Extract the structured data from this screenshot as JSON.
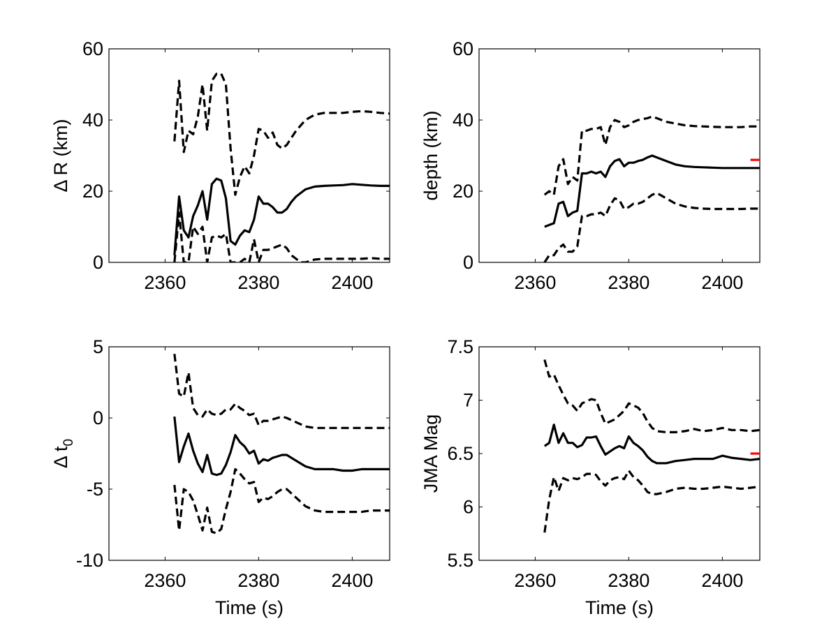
{
  "figure": {
    "background": "#ffffff"
  },
  "chart_data": [
    {
      "type": "line",
      "ylabel": "Δ R (km)",
      "xlabel": "",
      "xlim": [
        2348,
        2408
      ],
      "ylim": [
        0,
        60
      ],
      "xticks": [
        2360,
        2380,
        2400
      ],
      "yticks": [
        0,
        20,
        40,
        60
      ],
      "grid": false,
      "series": [
        {
          "style": "dashed",
          "color": "#000000",
          "x": [
            2362,
            2363,
            2364,
            2365,
            2366,
            2367,
            2368,
            2369,
            2370,
            2371,
            2372,
            2373,
            2374,
            2375,
            2376,
            2377,
            2378,
            2379,
            2380,
            2381,
            2382,
            2383,
            2384,
            2385,
            2386,
            2387,
            2388,
            2390,
            2392,
            2394,
            2396,
            2398,
            2400,
            2402,
            2404,
            2406,
            2408
          ],
          "y": [
            34,
            51,
            31,
            37,
            36,
            41,
            50,
            37,
            51,
            53,
            53,
            50,
            32,
            19,
            24,
            27,
            25,
            30,
            37.5,
            37,
            35,
            36.5,
            33,
            32,
            33,
            35,
            37,
            40,
            41.5,
            42,
            42,
            42,
            42.3,
            42.5,
            42.3,
            42,
            41.8
          ]
        },
        {
          "style": "solid",
          "color": "#000000",
          "x": [
            2362,
            2363,
            2364,
            2365,
            2366,
            2367,
            2368,
            2369,
            2370,
            2371,
            2372,
            2373,
            2374,
            2375,
            2376,
            2377,
            2378,
            2379,
            2380,
            2381,
            2382,
            2383,
            2384,
            2385,
            2386,
            2387,
            2388,
            2390,
            2392,
            2394,
            2396,
            2398,
            2400,
            2402,
            2404,
            2406,
            2408
          ],
          "y": [
            2,
            18.5,
            9,
            7,
            13,
            16,
            20,
            12,
            22,
            23.5,
            23,
            18,
            6,
            5,
            7.5,
            9,
            8.5,
            12,
            18.5,
            16.5,
            16.5,
            15.5,
            14,
            14,
            15,
            17,
            18.5,
            20.5,
            21.3,
            21.5,
            21.6,
            21.7,
            22,
            21.8,
            21.6,
            21.5,
            21.5
          ]
        },
        {
          "style": "dashed",
          "color": "#000000",
          "x": [
            2362,
            2363,
            2364,
            2365,
            2366,
            2367,
            2368,
            2369,
            2370,
            2371,
            2372,
            2373,
            2374,
            2375,
            2376,
            2377,
            2378,
            2379,
            2380,
            2381,
            2382,
            2383,
            2384,
            2385,
            2386,
            2387,
            2388,
            2389,
            2390,
            2392,
            2394,
            2396,
            2398,
            2400,
            2402,
            2404,
            2406,
            2408
          ],
          "y": [
            0,
            14,
            0,
            0,
            10,
            8,
            10,
            0,
            7,
            7.5,
            7,
            8,
            0,
            0,
            0,
            1,
            0,
            6.5,
            0,
            3.5,
            3.5,
            4,
            4.5,
            5,
            4,
            2,
            1,
            0,
            0,
            0.8,
            1,
            1,
            1,
            1,
            1,
            1.2,
            1,
            1
          ]
        }
      ],
      "markers": []
    },
    {
      "type": "line",
      "ylabel": "depth (km)",
      "xlabel": "",
      "xlim": [
        2348,
        2408
      ],
      "ylim": [
        0,
        60
      ],
      "xticks": [
        2360,
        2380,
        2400
      ],
      "yticks": [
        0,
        20,
        40,
        60
      ],
      "grid": false,
      "series": [
        {
          "style": "dashed",
          "color": "#000000",
          "x": [
            2362,
            2363,
            2364,
            2365,
            2366,
            2367,
            2368,
            2369,
            2370,
            2371,
            2372,
            2373,
            2374,
            2375,
            2376,
            2377,
            2378,
            2379,
            2380,
            2381,
            2382,
            2383,
            2384,
            2385,
            2386,
            2388,
            2390,
            2392,
            2394,
            2396,
            2398,
            2400,
            2402,
            2404,
            2406,
            2408
          ],
          "y": [
            19,
            20,
            19,
            27,
            29,
            22,
            24,
            23,
            37,
            37,
            37.5,
            37.5,
            38,
            33,
            38,
            40,
            39.5,
            38,
            38.5,
            39.5,
            40,
            40.3,
            40.5,
            41,
            40.5,
            39.5,
            39,
            38.5,
            38.3,
            38.2,
            38.1,
            38,
            38,
            38,
            38.2,
            38.2
          ]
        },
        {
          "style": "solid",
          "color": "#000000",
          "x": [
            2362,
            2363,
            2364,
            2365,
            2366,
            2367,
            2368,
            2369,
            2370,
            2371,
            2372,
            2373,
            2374,
            2375,
            2376,
            2377,
            2378,
            2379,
            2380,
            2381,
            2382,
            2383,
            2384,
            2385,
            2386,
            2388,
            2390,
            2392,
            2394,
            2396,
            2398,
            2400,
            2402,
            2404,
            2406,
            2408
          ],
          "y": [
            10,
            10.5,
            11,
            16.5,
            17,
            13,
            14,
            14.5,
            25,
            25,
            25.5,
            25,
            25.5,
            24,
            27,
            28.5,
            29,
            27,
            28,
            28,
            28.5,
            28.8,
            29.5,
            30,
            29.5,
            28.5,
            27.5,
            27,
            26.8,
            26.7,
            26.6,
            26.5,
            26.5,
            26.5,
            26.5,
            26.5
          ]
        },
        {
          "style": "dashed",
          "color": "#000000",
          "x": [
            2362,
            2363,
            2364,
            2365,
            2366,
            2367,
            2368,
            2369,
            2370,
            2371,
            2372,
            2373,
            2374,
            2375,
            2376,
            2377,
            2378,
            2379,
            2380,
            2381,
            2382,
            2383,
            2384,
            2385,
            2386,
            2388,
            2390,
            2392,
            2394,
            2396,
            2398,
            2400,
            2402,
            2404,
            2406,
            2408
          ],
          "y": [
            0,
            2,
            2,
            4,
            5,
            3,
            3,
            4.5,
            13,
            13,
            13.5,
            13.5,
            14,
            13,
            16,
            18,
            17.5,
            15,
            15.5,
            16.5,
            16.5,
            17,
            18,
            19,
            19.5,
            18,
            16.5,
            15.7,
            15.3,
            15.1,
            15,
            15,
            15,
            15,
            15.1,
            15.1
          ]
        }
      ],
      "markers": [
        {
          "style": "solid",
          "color": "#ff0000",
          "x": [
            2406,
            2408
          ],
          "y": [
            28.8,
            28.8
          ]
        }
      ]
    },
    {
      "type": "line",
      "ylabel": "Δ t0",
      "ylabel_main": "Δ t",
      "ylabel_sub": "0",
      "xlabel": "Time (s)",
      "xlim": [
        2348,
        2408
      ],
      "ylim": [
        -10,
        5
      ],
      "xticks": [
        2360,
        2380,
        2400
      ],
      "yticks": [
        -10,
        -5,
        0,
        5
      ],
      "grid": false,
      "series": [
        {
          "style": "dashed",
          "color": "#000000",
          "x": [
            2362,
            2363,
            2364,
            2365,
            2366,
            2367,
            2368,
            2369,
            2370,
            2371,
            2372,
            2373,
            2374,
            2375,
            2376,
            2377,
            2378,
            2379,
            2380,
            2381,
            2382,
            2383,
            2384,
            2385,
            2386,
            2388,
            2390,
            2392,
            2394,
            2396,
            2398,
            2400,
            2402,
            2404,
            2406,
            2408
          ],
          "y": [
            4.5,
            1.7,
            1.5,
            3.2,
            0.7,
            0.2,
            0.1,
            0.6,
            0.3,
            0.2,
            0.3,
            0.6,
            0.6,
            1,
            0.7,
            0.5,
            0.2,
            0.3,
            -0.5,
            -0.2,
            -0.2,
            -0.1,
            0,
            0.1,
            0,
            -0.3,
            -0.6,
            -0.7,
            -0.7,
            -0.7,
            -0.7,
            -0.7,
            -0.7,
            -0.7,
            -0.7,
            -0.7
          ]
        },
        {
          "style": "solid",
          "color": "#000000",
          "x": [
            2362,
            2363,
            2364,
            2365,
            2366,
            2367,
            2368,
            2369,
            2370,
            2371,
            2372,
            2373,
            2374,
            2375,
            2376,
            2377,
            2378,
            2379,
            2380,
            2381,
            2382,
            2383,
            2384,
            2385,
            2386,
            2388,
            2390,
            2392,
            2394,
            2396,
            2398,
            2400,
            2402,
            2404,
            2406,
            2408
          ],
          "y": [
            0.1,
            -3.1,
            -2,
            -1.1,
            -2.3,
            -3.2,
            -3.8,
            -2.6,
            -3.9,
            -4,
            -3.9,
            -3.3,
            -2.4,
            -1.2,
            -1.7,
            -2,
            -2.5,
            -2.3,
            -3.2,
            -2.9,
            -3,
            -2.8,
            -2.7,
            -2.6,
            -2.6,
            -3,
            -3.4,
            -3.6,
            -3.6,
            -3.6,
            -3.7,
            -3.7,
            -3.6,
            -3.6,
            -3.6,
            -3.6
          ]
        },
        {
          "style": "dashed",
          "color": "#000000",
          "x": [
            2362,
            2363,
            2364,
            2365,
            2366,
            2367,
            2368,
            2369,
            2370,
            2371,
            2372,
            2373,
            2374,
            2375,
            2376,
            2377,
            2378,
            2379,
            2380,
            2381,
            2382,
            2383,
            2384,
            2385,
            2386,
            2388,
            2390,
            2392,
            2394,
            2396,
            2398,
            2400,
            2402,
            2404,
            2406,
            2408
          ],
          "y": [
            -4.7,
            -7.9,
            -5,
            -5.2,
            -5.8,
            -6.8,
            -7.9,
            -6.3,
            -8,
            -8.1,
            -7.8,
            -6.4,
            -5.2,
            -3.6,
            -3.9,
            -4.3,
            -4.6,
            -4.5,
            -5.9,
            -5.6,
            -5.7,
            -5.5,
            -5.2,
            -5,
            -5,
            -5.6,
            -6.2,
            -6.5,
            -6.6,
            -6.6,
            -6.6,
            -6.6,
            -6.6,
            -6.5,
            -6.5,
            -6.5
          ]
        }
      ],
      "markers": []
    },
    {
      "type": "line",
      "ylabel": "JMA Mag",
      "xlabel": "Time (s)",
      "xlim": [
        2348,
        2408
      ],
      "ylim": [
        5.5,
        7.5
      ],
      "xticks": [
        2360,
        2380,
        2400
      ],
      "yticks": [
        5.5,
        6,
        6.5,
        7,
        7.5
      ],
      "grid": false,
      "series": [
        {
          "style": "dashed",
          "color": "#000000",
          "x": [
            2362,
            2363,
            2364,
            2365,
            2366,
            2367,
            2368,
            2369,
            2370,
            2371,
            2372,
            2373,
            2374,
            2375,
            2376,
            2377,
            2378,
            2379,
            2380,
            2381,
            2382,
            2383,
            2384,
            2385,
            2386,
            2388,
            2390,
            2392,
            2394,
            2396,
            2398,
            2400,
            2402,
            2404,
            2406,
            2408
          ],
          "y": [
            7.38,
            7.22,
            7.24,
            7.14,
            7.05,
            6.97,
            6.95,
            6.9,
            6.97,
            6.99,
            7.01,
            7,
            6.88,
            6.78,
            6.8,
            6.82,
            6.86,
            6.9,
            6.97,
            6.95,
            6.93,
            6.88,
            6.8,
            6.74,
            6.71,
            6.7,
            6.7,
            6.71,
            6.73,
            6.71,
            6.72,
            6.74,
            6.72,
            6.72,
            6.71,
            6.72
          ]
        },
        {
          "style": "solid",
          "color": "#000000",
          "x": [
            2362,
            2363,
            2364,
            2365,
            2366,
            2367,
            2368,
            2369,
            2370,
            2371,
            2372,
            2373,
            2374,
            2375,
            2376,
            2377,
            2378,
            2379,
            2380,
            2381,
            2382,
            2383,
            2384,
            2385,
            2386,
            2388,
            2390,
            2392,
            2394,
            2396,
            2398,
            2400,
            2402,
            2404,
            2406,
            2408
          ],
          "y": [
            6.57,
            6.6,
            6.77,
            6.6,
            6.69,
            6.6,
            6.6,
            6.56,
            6.58,
            6.65,
            6.65,
            6.66,
            6.57,
            6.49,
            6.52,
            6.55,
            6.57,
            6.55,
            6.66,
            6.6,
            6.57,
            6.53,
            6.47,
            6.43,
            6.41,
            6.41,
            6.43,
            6.44,
            6.45,
            6.45,
            6.45,
            6.48,
            6.46,
            6.45,
            6.44,
            6.45
          ]
        },
        {
          "style": "dashed",
          "color": "#000000",
          "x": [
            2362,
            2363,
            2364,
            2365,
            2366,
            2367,
            2368,
            2369,
            2370,
            2371,
            2372,
            2373,
            2374,
            2375,
            2376,
            2377,
            2378,
            2379,
            2380,
            2381,
            2382,
            2383,
            2384,
            2385,
            2386,
            2388,
            2390,
            2392,
            2394,
            2396,
            2398,
            2400,
            2402,
            2404,
            2406,
            2408
          ],
          "y": [
            5.76,
            6.07,
            6.28,
            6.15,
            6.27,
            6.25,
            6.27,
            6.26,
            6.28,
            6.31,
            6.31,
            6.3,
            6.24,
            6.2,
            6.25,
            6.27,
            6.28,
            6.26,
            6.34,
            6.28,
            6.25,
            6.2,
            6.14,
            6.12,
            6.12,
            6.14,
            6.17,
            6.18,
            6.17,
            6.17,
            6.18,
            6.19,
            6.18,
            6.17,
            6.18,
            6.19
          ]
        }
      ],
      "markers": [
        {
          "style": "solid",
          "color": "#ff0000",
          "x": [
            2406,
            2408
          ],
          "y": [
            6.5,
            6.5
          ]
        }
      ]
    }
  ]
}
